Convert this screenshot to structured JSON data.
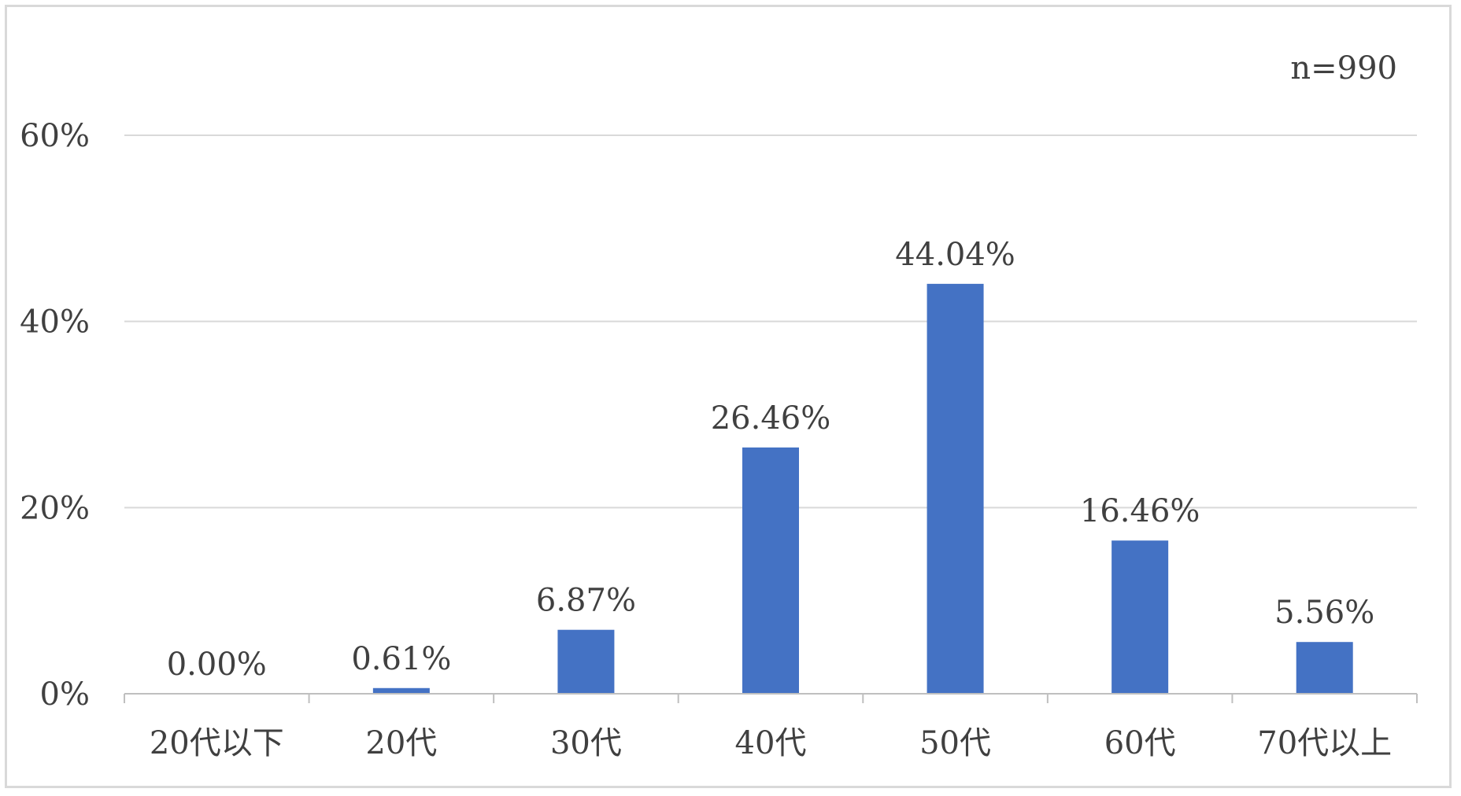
{
  "chart_data": {
    "type": "bar",
    "categories": [
      "20代以下",
      "20代",
      "30代",
      "40代",
      "50代",
      "60代",
      "70代以上"
    ],
    "values": [
      0.0,
      0.61,
      6.87,
      26.46,
      44.04,
      16.46,
      5.56
    ],
    "data_labels": [
      "0.00%",
      "0.61%",
      "6.87%",
      "26.46%",
      "44.04%",
      "16.46%",
      "5.56%"
    ],
    "y_ticks": [
      0,
      20,
      40,
      60
    ],
    "y_tick_labels": [
      "0%",
      "20%",
      "40%",
      "60%"
    ],
    "ylim": [
      0,
      60
    ],
    "grid": true,
    "legend": "none",
    "annotation": "n=990",
    "colors": {
      "bar": "#4472c4",
      "grid": "#d9d9d9",
      "axis": "#bfbfbf",
      "text": "#404040"
    }
  }
}
